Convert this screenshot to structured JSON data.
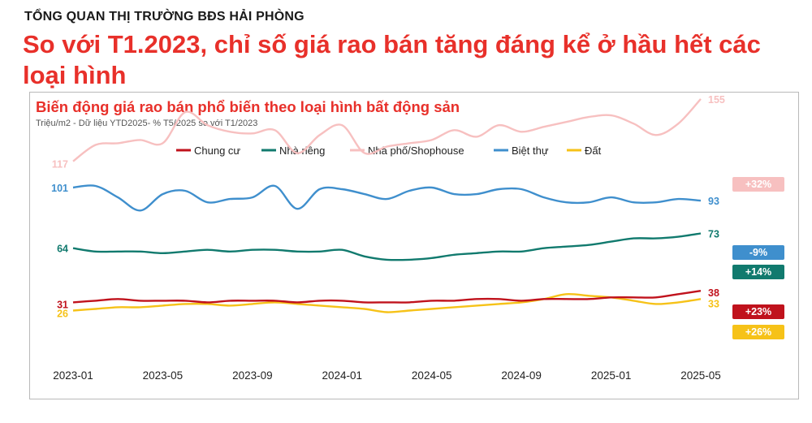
{
  "header": {
    "kicker": "TỔNG QUAN THỊ TRƯỜNG BĐS HẢI PHÒNG",
    "headline": "So với T1.2023, chỉ số giá rao bán tăng đáng kể ở hầu hết các loại hình"
  },
  "chart_data": {
    "type": "line",
    "title": "Biến động giá rao bán phổ biến theo loại hình bất động sản",
    "subtitle": "Triệu/m2 - Dữ liệu YTD2025- % T5/2025 so với T1/2023",
    "legend_position": "top",
    "grid": false,
    "x": [
      "2023-01",
      "2023-02",
      "2023-03",
      "2023-04",
      "2023-05",
      "2023-06",
      "2023-07",
      "2023-08",
      "2023-09",
      "2023-10",
      "2023-11",
      "2023-12",
      "2024-01",
      "2024-02",
      "2024-03",
      "2024-04",
      "2024-05",
      "2024-06",
      "2024-07",
      "2024-08",
      "2024-09",
      "2024-10",
      "2024-11",
      "2024-12",
      "2025-01",
      "2025-02",
      "2025-03",
      "2025-04",
      "2025-05"
    ],
    "x_tick_labels": [
      "2023-01",
      "2023-05",
      "2023-09",
      "2024-01",
      "2024-05",
      "2024-09",
      "2025-01",
      "2025-05"
    ],
    "ylim": [
      0,
      170
    ],
    "series": [
      {
        "name": "Chung cư",
        "color": "#c0121c",
        "values": [
          31,
          32,
          33,
          32,
          32,
          32,
          31,
          32,
          32,
          32,
          31,
          32,
          32,
          31,
          31,
          31,
          32,
          32,
          33,
          33,
          32,
          33,
          33,
          33,
          34,
          34,
          34,
          36,
          38
        ],
        "start_label": "31",
        "end_label": "38",
        "change": "+23%"
      },
      {
        "name": "Nhà riêng",
        "color": "#117a6e",
        "values": [
          64,
          62,
          62,
          62,
          61,
          62,
          63,
          62,
          63,
          63,
          62,
          62,
          63,
          59,
          57,
          57,
          58,
          60,
          61,
          62,
          62,
          64,
          65,
          66,
          68,
          70,
          70,
          71,
          73
        ],
        "start_label": "64",
        "end_label": "73",
        "change": "+14%"
      },
      {
        "name": "Nhà phố/Shophouse",
        "color": "#f7c0c0",
        "values": [
          117,
          127,
          128,
          130,
          128,
          147,
          139,
          135,
          134,
          136,
          122,
          133,
          139,
          122,
          126,
          128,
          130,
          136,
          132,
          139,
          135,
          138,
          141,
          144,
          145,
          140,
          133,
          140,
          155
        ],
        "start_label": "117",
        "end_label": "155",
        "change": "+32%"
      },
      {
        "name": "Biệt thự",
        "color": "#3f8fcd",
        "values": [
          101,
          102,
          95,
          87,
          97,
          99,
          92,
          94,
          95,
          102,
          88,
          100,
          100,
          97,
          94,
          99,
          101,
          97,
          97,
          100,
          100,
          95,
          92,
          92,
          95,
          92,
          92,
          94,
          93
        ],
        "start_label": "101",
        "end_label": "93",
        "change": "-9%"
      },
      {
        "name": "Đất",
        "color": "#f6c218",
        "values": [
          26,
          27,
          28,
          28,
          29,
          30,
          30,
          29,
          30,
          31,
          30,
          29,
          28,
          27,
          25,
          26,
          27,
          28,
          29,
          30,
          31,
          33,
          36,
          35,
          34,
          32,
          30,
          31,
          33
        ],
        "start_label": "26",
        "end_label": "33",
        "change": "+26%"
      }
    ]
  }
}
